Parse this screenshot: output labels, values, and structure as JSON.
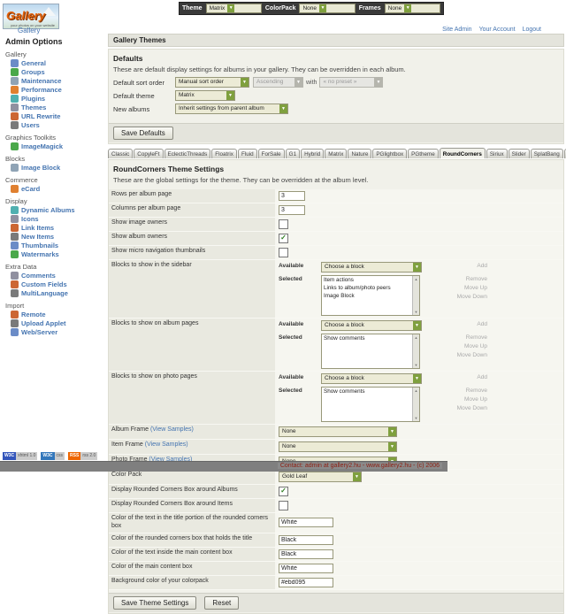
{
  "topbar": {
    "selectors": [
      {
        "label": "Theme",
        "value": "Matrix"
      },
      {
        "label": "ColorPack",
        "value": "None"
      },
      {
        "label": "Frames",
        "value": "None"
      }
    ]
  },
  "logo": {
    "text": "Gallery",
    "subtext": "your photos on your website"
  },
  "breadcrumb": {
    "site_link": "Gallery"
  },
  "user_links": [
    {
      "label": "Site Admin"
    },
    {
      "label": "Your Account"
    },
    {
      "label": "Logout"
    }
  ],
  "sidebar": {
    "title": "Admin Options",
    "sections": [
      {
        "title": "Gallery",
        "items": [
          {
            "label": "General",
            "icon": "gear-icon"
          },
          {
            "label": "Groups",
            "icon": "people-icon"
          },
          {
            "label": "Maintenance",
            "icon": "tools-icon"
          },
          {
            "label": "Performance",
            "icon": "speedometer-icon"
          },
          {
            "label": "Plugins",
            "icon": "plug-icon"
          },
          {
            "label": "Themes",
            "icon": "palette-icon"
          },
          {
            "label": "URL Rewrite",
            "icon": "link-icon"
          },
          {
            "label": "Users",
            "icon": "user-icon"
          }
        ]
      },
      {
        "title": "Graphics Toolkits",
        "items": [
          {
            "label": "ImageMagick",
            "icon": "wand-icon"
          }
        ]
      },
      {
        "title": "Blocks",
        "items": [
          {
            "label": "Image Block",
            "icon": "image-icon"
          }
        ]
      },
      {
        "title": "Commerce",
        "items": [
          {
            "label": "eCard",
            "icon": "card-icon"
          }
        ]
      },
      {
        "title": "Display",
        "items": [
          {
            "label": "Dynamic Albums",
            "icon": "albums-icon"
          },
          {
            "label": "Icons",
            "icon": "icons-icon"
          },
          {
            "label": "Link Items",
            "icon": "chain-icon"
          },
          {
            "label": "New Items",
            "icon": "new-items-icon"
          },
          {
            "label": "Thumbnails",
            "icon": "thumbnail-icon"
          },
          {
            "label": "Watermarks",
            "icon": "watermark-icon"
          }
        ]
      },
      {
        "title": "Extra Data",
        "items": [
          {
            "label": "Comments",
            "icon": "comment-icon"
          },
          {
            "label": "Custom Fields",
            "icon": "fields-icon"
          },
          {
            "label": "MultiLanguage",
            "icon": "language-icon"
          }
        ]
      },
      {
        "title": "Import",
        "items": [
          {
            "label": "Remote",
            "icon": "remote-icon"
          },
          {
            "label": "Upload Applet",
            "icon": "upload-icon"
          },
          {
            "label": "Web/Server",
            "icon": "server-icon"
          }
        ]
      }
    ]
  },
  "page_title": "Gallery Themes",
  "defaults": {
    "title": "Defaults",
    "description": "These are default display settings for albums in your gallery. They can be overridden in each album.",
    "sort_label": "Default sort order",
    "sort_value": "Manual sort order",
    "sort_dir_value": "Ascending",
    "with_label": "with",
    "preset_value": "« no preset »",
    "theme_label": "Default theme",
    "theme_value": "Matrix",
    "new_albums_label": "New albums",
    "new_albums_value": "Inherit settings from parent album",
    "save_button": "Save Defaults"
  },
  "tabs": {
    "active": "RoundCorners",
    "items": [
      "Classic",
      "CopyleFt",
      "EclecticThreads",
      "Floatrix",
      "Fluid",
      "ForSale",
      "G1",
      "Hybrid",
      "Matrix",
      "Nature",
      "PGlightbox",
      "PGtheme",
      "RoundCorners",
      "Siriux",
      "Slider",
      "SplatBang",
      "Tan",
      "Tile",
      "WordpressEmbedded"
    ]
  },
  "theme_settings": {
    "title": "RoundCorners Theme Settings",
    "description": "These are the global settings for the theme. They can be overridden at the album level.",
    "available_label": "Available",
    "selected_label": "Selected",
    "choose_block": "Choose a block",
    "add_label": "Add",
    "remove_label": "Remove",
    "move_up_label": "Move Up",
    "move_down_label": "Move Down",
    "rows": [
      {
        "type": "text",
        "label": "Rows per album page",
        "value": "3"
      },
      {
        "type": "text",
        "label": "Columns per album page",
        "value": "3"
      },
      {
        "type": "checkbox",
        "label": "Show image owners",
        "checked": false
      },
      {
        "type": "checkbox",
        "label": "Show album owners",
        "checked": true
      },
      {
        "type": "checkbox",
        "label": "Show micro navigation thumbnails",
        "checked": false
      },
      {
        "type": "blocks",
        "label": "Blocks to show in the sidebar",
        "selected": [
          "Item actions",
          "Links to album/photo peers",
          "Image Block"
        ]
      },
      {
        "type": "blocks",
        "label": "Blocks to show on album pages",
        "selected": [
          "Show comments"
        ]
      },
      {
        "type": "blocks",
        "label": "Blocks to show on photo pages",
        "selected": [
          "Show comments"
        ]
      },
      {
        "type": "select",
        "label": "Album Frame",
        "link": "(View Samples)",
        "value": "None"
      },
      {
        "type": "select",
        "label": "Item Frame",
        "link": "(View Samples)",
        "value": "None"
      },
      {
        "type": "select",
        "label": "Photo Frame",
        "link": "(View Samples)",
        "value": "None"
      },
      {
        "type": "select",
        "label": "Color Pack",
        "value": "Gold Leaf"
      },
      {
        "type": "checkbox",
        "label": "Display Rounded Corners Box around Albums",
        "checked": true
      },
      {
        "type": "checkbox",
        "label": "Display Rounded Corners Box around Items",
        "checked": false
      },
      {
        "type": "text",
        "label": "Color of the text in the title portion of the rounded corners box",
        "value": "White"
      },
      {
        "type": "text",
        "label": "Color of the rounded corners box that holds the title",
        "value": "Black"
      },
      {
        "type": "text",
        "label": "Color of the text inside the main content box",
        "value": "Black"
      },
      {
        "type": "text",
        "label": "Color of the main content box",
        "value": "White"
      },
      {
        "type": "text",
        "label": "Background color of your colorpack",
        "value": "#ebd095"
      }
    ],
    "save_button": "Save Theme Settings",
    "reset_button": "Reset"
  },
  "footer": {
    "badges": [
      {
        "label": "W3C",
        "text": "xhtml 1.0",
        "color": "#3355bb"
      },
      {
        "label": "W3C",
        "text": "css",
        "color": "#3377bb"
      },
      {
        "label": "RSS",
        "text": "rss 2.0",
        "color": "#ee6600"
      }
    ],
    "contact_text": "Contact: admin at gallery2.hu - www.gallery2.hu - (c) 2006"
  },
  "colors": {
    "accent_green": "#7fa03e",
    "link_blue": "#4474b0",
    "panel_bg": "#f1f1ea",
    "label_cell_bg": "#e9e9e0",
    "topbar_bg": "#3a3a3a",
    "footer_bar_bg": "#7f7f7f",
    "footer_text": "#8d1f12"
  }
}
